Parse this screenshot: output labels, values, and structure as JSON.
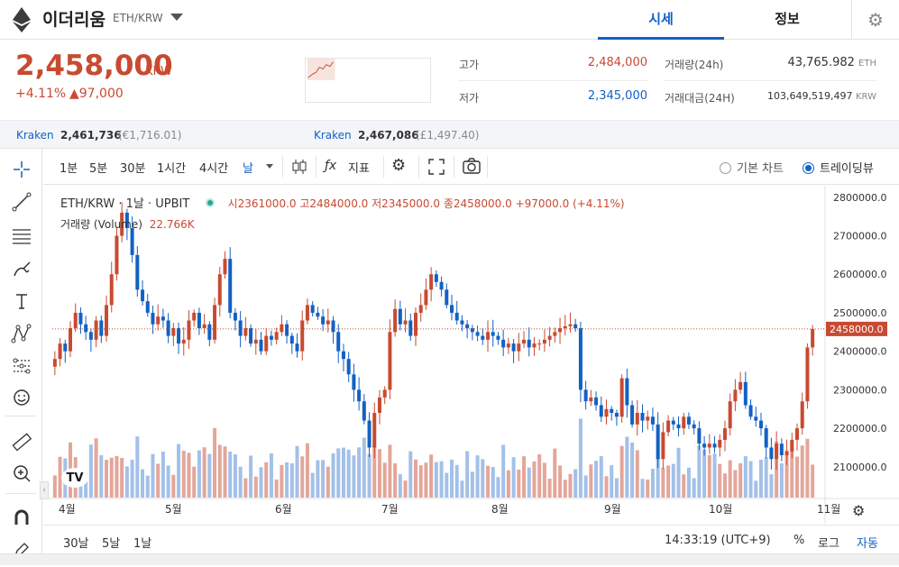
{
  "header": {
    "coin_name": "이더리움",
    "pair": "ETH/KRW",
    "tabs": [
      "시세",
      "정보"
    ]
  },
  "price": {
    "current": "2,458,000",
    "unit": "KRW",
    "change_pct": "+4.11%",
    "change_abs": "▲97,000",
    "color_up": "#c84a31",
    "color_down": "#1261c4"
  },
  "stats": {
    "high_label": "고가",
    "high_value": "2,484,000",
    "low_label": "저가",
    "low_value": "2,345,000",
    "volume_label": "거래량(24h)",
    "volume_value": "43,765.982",
    "volume_unit": "ETH",
    "amount_label": "거래대금(24H)",
    "amount_value": "103,649,519,497",
    "amount_unit": "KRW"
  },
  "exchanges": [
    {
      "name": "Kraken",
      "value": "2,461,736",
      "sub": "(€1,716.01)"
    },
    {
      "name": "Kraken",
      "value": "2,467,086",
      "sub": "(£1,497.40)"
    }
  ],
  "left_tools": [
    "crosshair-icon",
    "trendline-icon",
    "fib-icon",
    "brush-icon",
    "text-icon",
    "pattern-icon",
    "prediction-icon",
    "emoji-icon",
    "ruler-icon",
    "zoom-in-icon",
    "magnet-icon",
    "pencil-lock-icon"
  ],
  "chart_toolbar": {
    "intervals": [
      "1분",
      "5분",
      "30분",
      "1시간",
      "4시간",
      "날"
    ],
    "indicator_label": "지표",
    "basic_chart": "기본 차트",
    "tradingview": "트레이딩뷰"
  },
  "legend": {
    "symbol": "ETH/KRW",
    "interval": "1날",
    "exchange": "UPBIT",
    "ohlc": "시2361000.0 고2484000.0 저2345000.0 종2458000.0 +97000.0 (+4.11%)",
    "volume_label": "거래량 (Volume)",
    "volume_value": "22.766K"
  },
  "chart_data": {
    "type": "candlestick",
    "ylim": [
      2020000,
      2830000
    ],
    "y_ticks": [
      "2800000.0",
      "2700000.0",
      "2600000.0",
      "2500000.0",
      "2400000.0",
      "2300000.0",
      "2200000.0",
      "2100000.0"
    ],
    "x_ticks": [
      "4월",
      "5월",
      "6월",
      "7월",
      "8월",
      "9월",
      "10월",
      "11월"
    ],
    "last_price_label": "2458000.0",
    "last_price": 2458000,
    "closes": [
      2380000,
      2420000,
      2400000,
      2460000,
      2500000,
      2470000,
      2450000,
      2430000,
      2480000,
      2440000,
      2520000,
      2600000,
      2700000,
      2760000,
      2720000,
      2650000,
      2560000,
      2530000,
      2500000,
      2470000,
      2490000,
      2480000,
      2440000,
      2460000,
      2420000,
      2430000,
      2480000,
      2500000,
      2460000,
      2470000,
      2430000,
      2520000,
      2600000,
      2640000,
      2500000,
      2480000,
      2440000,
      2460000,
      2420000,
      2430000,
      2400000,
      2440000,
      2430000,
      2450000,
      2470000,
      2440000,
      2420000,
      2400000,
      2480000,
      2520000,
      2500000,
      2490000,
      2470000,
      2480000,
      2450000,
      2400000,
      2380000,
      2340000,
      2300000,
      2270000,
      2220000,
      2150000,
      2240000,
      2280000,
      2300000,
      2450000,
      2510000,
      2470000,
      2480000,
      2440000,
      2500000,
      2520000,
      2560000,
      2600000,
      2580000,
      2560000,
      2520000,
      2500000,
      2480000,
      2470000,
      2460000,
      2450000,
      2440000,
      2430000,
      2450000,
      2440000,
      2430000,
      2410000,
      2420000,
      2400000,
      2420000,
      2430000,
      2410000,
      2420000,
      2420000,
      2430000,
      2440000,
      2450000,
      2460000,
      2465000,
      2470000,
      2460000,
      2300000,
      2270000,
      2280000,
      2260000,
      2230000,
      2250000,
      2240000,
      2230000,
      2330000,
      2260000,
      2210000,
      2240000,
      2220000,
      2230000,
      2210000,
      2120000,
      2190000,
      2220000,
      2210000,
      2200000,
      2230000,
      2210000,
      2200000,
      2160000,
      2150000,
      2160000,
      2150000,
      2170000,
      2200000,
      2270000,
      2300000,
      2320000,
      2260000,
      2230000,
      2220000,
      2200000,
      2150000,
      2120000,
      2160000,
      2130000,
      2140000,
      2170000,
      2200000,
      2270000,
      2410000,
      2458000
    ]
  },
  "bottom_bar": {
    "ranges": [
      "30날",
      "5날",
      "1날"
    ],
    "time": "14:33:19 (UTC+9)",
    "percent": "%",
    "log": "로그",
    "auto": "자동"
  }
}
